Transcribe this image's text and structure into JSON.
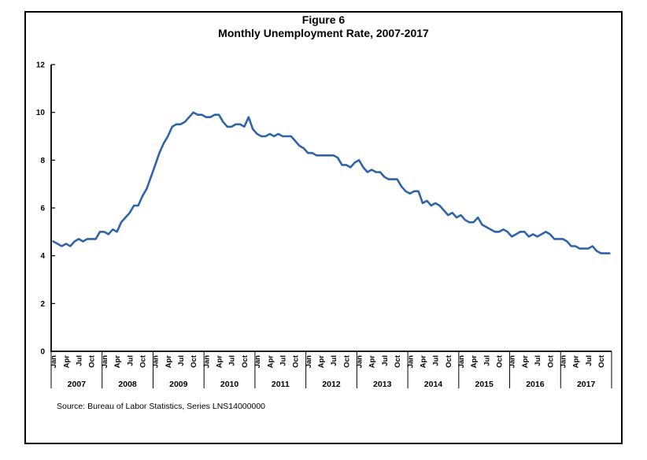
{
  "figure": {
    "title_line1": "Figure 6",
    "title_line2": "Monthly Unemployment Rate, 2007-2017",
    "source": "Source: Bureau of Labor Statistics, Series LNS14000000"
  },
  "chart_data": {
    "type": "line",
    "title": "Figure 6",
    "subtitle": "Monthly Unemployment Rate, 2007-2017",
    "xlabel": "",
    "ylabel": "",
    "ylim": [
      0,
      12
    ],
    "yticks": [
      0,
      2,
      4,
      6,
      8,
      10,
      12
    ],
    "grid": false,
    "legend": "none",
    "x_start": "Jan 2007",
    "x_end": "Dec 2017",
    "years": [
      2007,
      2008,
      2009,
      2010,
      2011,
      2012,
      2013,
      2014,
      2015,
      2016,
      2017
    ],
    "month_tick_labels": [
      "Jan",
      "Apr",
      "Jul",
      "Oct"
    ],
    "series": [
      {
        "name": "Monthly unemployment rate (%)",
        "color": "#2F64A9",
        "values": [
          4.6,
          4.5,
          4.4,
          4.5,
          4.4,
          4.6,
          4.7,
          4.6,
          4.7,
          4.7,
          4.7,
          5.0,
          5.0,
          4.9,
          5.1,
          5.0,
          5.4,
          5.6,
          5.8,
          6.1,
          6.1,
          6.5,
          6.8,
          7.3,
          7.8,
          8.3,
          8.7,
          9.0,
          9.4,
          9.5,
          9.5,
          9.6,
          9.8,
          10.0,
          9.9,
          9.9,
          9.8,
          9.8,
          9.9,
          9.9,
          9.6,
          9.4,
          9.4,
          9.5,
          9.5,
          9.4,
          9.8,
          9.3,
          9.1,
          9.0,
          9.0,
          9.1,
          9.0,
          9.1,
          9.0,
          9.0,
          9.0,
          8.8,
          8.6,
          8.5,
          8.3,
          8.3,
          8.2,
          8.2,
          8.2,
          8.2,
          8.2,
          8.1,
          7.8,
          7.8,
          7.7,
          7.9,
          8.0,
          7.7,
          7.5,
          7.6,
          7.5,
          7.5,
          7.3,
          7.2,
          7.2,
          7.2,
          6.9,
          6.7,
          6.6,
          6.7,
          6.7,
          6.2,
          6.3,
          6.1,
          6.2,
          6.1,
          5.9,
          5.7,
          5.8,
          5.6,
          5.7,
          5.5,
          5.4,
          5.4,
          5.6,
          5.3,
          5.2,
          5.1,
          5.0,
          5.0,
          5.1,
          5.0,
          4.8,
          4.9,
          5.0,
          5.0,
          4.8,
          4.9,
          4.8,
          4.9,
          5.0,
          4.9,
          4.7,
          4.7,
          4.7,
          4.6,
          4.4,
          4.4,
          4.3,
          4.3,
          4.3,
          4.4,
          4.2,
          4.1,
          4.1,
          4.1
        ]
      }
    ],
    "source": "Source: Bureau of Labor Statistics, Series LNS14000000"
  }
}
